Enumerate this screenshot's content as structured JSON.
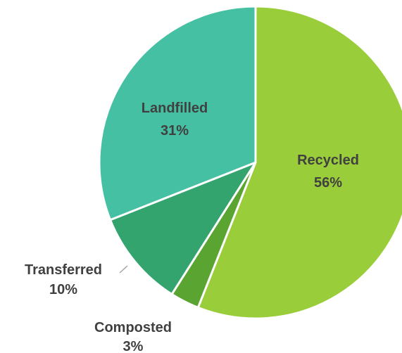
{
  "chart_data": {
    "type": "pie",
    "title": "",
    "legend": "none",
    "categories": [
      "Recycled",
      "Composted",
      "Transferred",
      "Landfilled"
    ],
    "values": [
      56,
      3,
      10,
      31
    ],
    "value_labels": [
      "56%",
      "3%",
      "10%",
      "31%"
    ],
    "colors": [
      "#9acd3a",
      "#5aa532",
      "#34a46e",
      "#45c0a3"
    ],
    "separator_color": "#ffffff",
    "label_color": "#404040",
    "leader_line_color": "#a6a6a6"
  }
}
